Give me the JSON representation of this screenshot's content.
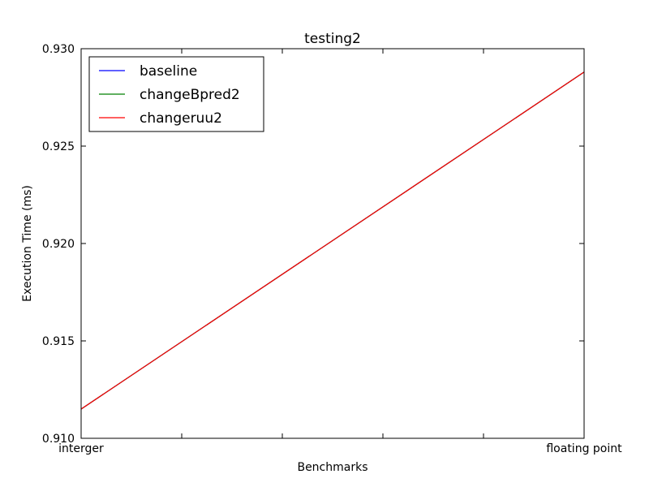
{
  "chart_data": {
    "type": "line",
    "title": "testing2",
    "xlabel": "Benchmarks",
    "ylabel": "Execution Time (ms)",
    "categories": [
      "interger",
      "floating point"
    ],
    "ylim": [
      0.91,
      0.93
    ],
    "yticks": [
      "0.910",
      "0.915",
      "0.920",
      "0.925",
      "0.930"
    ],
    "grid": false,
    "legend_position": "top-left",
    "series": [
      {
        "name": "baseline",
        "color": "#0000ff",
        "values": [
          0.9115,
          0.9288
        ]
      },
      {
        "name": "changeBpred2",
        "color": "#008000",
        "values": [
          0.9115,
          0.9288
        ]
      },
      {
        "name": "changeruu2",
        "color": "#ff0000",
        "values": [
          0.9115,
          0.9288
        ]
      }
    ]
  }
}
